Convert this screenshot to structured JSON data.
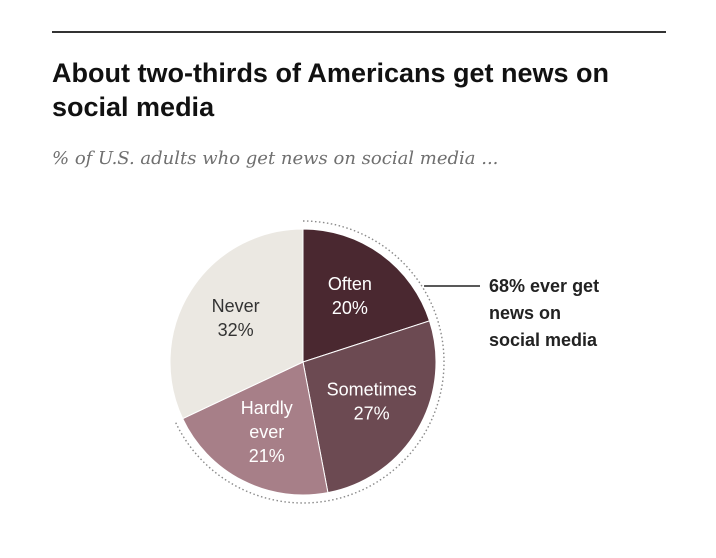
{
  "title": "About two-thirds of Americans get news on social media",
  "subtitle": "% of U.S. adults who get news on social media ...",
  "chart_data": {
    "type": "pie",
    "title": "About two-thirds of Americans get news on social media",
    "subtitle": "% of U.S. adults who get news on social media ...",
    "unit": "%",
    "slices": [
      {
        "label": "Often",
        "label_lines": [
          "Often"
        ],
        "value": 20,
        "value_label": "20%",
        "color": "#4a2830",
        "label_color": "#ffffff"
      },
      {
        "label": "Sometimes",
        "label_lines": [
          "Sometimes"
        ],
        "value": 27,
        "value_label": "27%",
        "color": "#6c4a52",
        "label_color": "#ffffff"
      },
      {
        "label": "Hardly ever",
        "label_lines": [
          "Hardly",
          "ever"
        ],
        "value": 21,
        "value_label": "21%",
        "color": "#a77f88",
        "label_color": "#ffffff"
      },
      {
        "label": "Never",
        "label_lines": [
          "Never"
        ],
        "value": 32,
        "value_label": "32%",
        "color": "#ebe8e2",
        "label_color": "#333333"
      }
    ],
    "annotation": {
      "text_lines": [
        "68% ever get",
        "news on",
        "social media"
      ],
      "spans": [
        "Often",
        "Sometimes",
        "Hardly ever"
      ]
    }
  }
}
